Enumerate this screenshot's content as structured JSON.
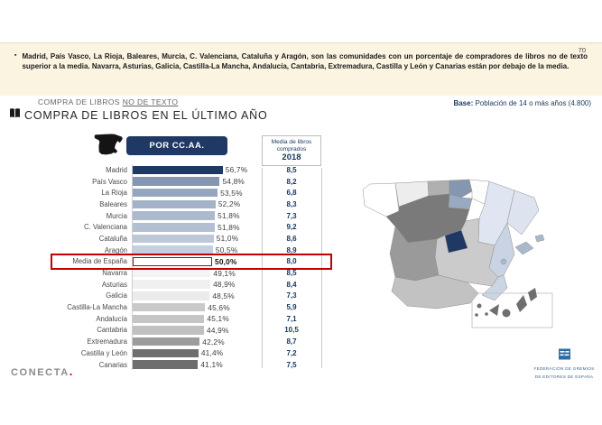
{
  "page_number": "70",
  "bullet_text": "Madrid, País Vasco, La Rioja, Baleares, Murcia, C. Valenciana, Cataluña y Aragón, son las comunidades con un porcentaje de compradores de libros no de texto superior a la media. Navarra, Asturias, Galicia, Castilla-La Mancha, Andalucía, Cantabria, Extremadura, Castilla y León y Canarias están por debajo de la media.",
  "header": {
    "kicker": "COMPRA DE LIBROS ",
    "kicker_underlined": "NO DE TEXTO",
    "title": "COMPRA DE LIBROS EN EL ÚLTIMO AÑO",
    "base_label": "Base:",
    "base_text": " Población de 14 o más años (4.800)"
  },
  "chart": {
    "button_label": "POR CC.AA.",
    "column_header": {
      "line1": "Media de libros",
      "line2": "comprados",
      "year": "2018"
    }
  },
  "chart_data": {
    "type": "bar",
    "orientation": "horizontal",
    "group_title": "POR CC.AA.",
    "value_suffix": "%",
    "xlim": [
      0,
      60
    ],
    "secondary_column": "Media de libros comprados 2018",
    "highlight_row": "Media de España",
    "rows": [
      {
        "label": "Madrid",
        "value": 56.7,
        "pct": "56,7%",
        "media": "8,5",
        "color": "#1F3864"
      },
      {
        "label": "País Vasco",
        "value": 54.8,
        "pct": "54,8%",
        "media": "8,2",
        "color": "#8496B0"
      },
      {
        "label": "La Rioja",
        "value": 53.5,
        "pct": "53,5%",
        "media": "6,8",
        "color": "#97A6BF"
      },
      {
        "label": "Baleares",
        "value": 52.2,
        "pct": "52,2%",
        "media": "8,3",
        "color": "#A3B1C9"
      },
      {
        "label": "Murcia",
        "value": 51.8,
        "pct": "51,8%",
        "media": "7,3",
        "color": "#ACB9CE"
      },
      {
        "label": "C. Valenciana",
        "value": 51.8,
        "pct": "51,8%",
        "media": "9,2",
        "color": "#B3BFD3"
      },
      {
        "label": "Cataluña",
        "value": 51.0,
        "pct": "51,0%",
        "media": "8,6",
        "color": "#BCC7D9"
      },
      {
        "label": "Aragón",
        "value": 50.5,
        "pct": "50,5%",
        "media": "8,9",
        "color": "#C6CFDF"
      },
      {
        "label": "Media de España",
        "value": 50.0,
        "pct": "50,0%",
        "media": "8,0",
        "color": "#FFFFFF",
        "highlight": true
      },
      {
        "label": "Navarra",
        "value": 49.1,
        "pct": "49,1%",
        "media": "8,5",
        "color": "#F4F4F4"
      },
      {
        "label": "Asturias",
        "value": 48.9,
        "pct": "48,9%",
        "media": "8,4",
        "color": "#F0F0F0"
      },
      {
        "label": "Galicia",
        "value": 48.5,
        "pct": "48,5%",
        "media": "7,3",
        "color": "#EBEBEB"
      },
      {
        "label": "Castilla-La Mancha",
        "value": 45.6,
        "pct": "45,6%",
        "media": "5,9",
        "color": "#C9C9C9"
      },
      {
        "label": "Andalucía",
        "value": 45.1,
        "pct": "45,1%",
        "media": "7,1",
        "color": "#C5C5C5"
      },
      {
        "label": "Cantabria",
        "value": 44.9,
        "pct": "44,9%",
        "media": "10,5",
        "color": "#C0C0C0"
      },
      {
        "label": "Extremadura",
        "value": 42.2,
        "pct": "42,2%",
        "media": "8,7",
        "color": "#9C9C9C"
      },
      {
        "label": "Castilla y León",
        "value": 41.4,
        "pct": "41,4%",
        "media": "7,2",
        "color": "#6E6E6E"
      },
      {
        "label": "Canarias",
        "value": 41.1,
        "pct": "41,1%",
        "media": "7,5",
        "color": "#6E6E6E"
      }
    ]
  },
  "map": {
    "regions": {
      "galicia": "#FFFFFF",
      "asturias": "#EDEDED",
      "cantabria": "#B0B0B0",
      "pais-vasco": "#8496B0",
      "navarra": "#FDFDFD",
      "la-rioja": "#9AA9C2",
      "aragon": "#E0E6F1",
      "cataluna": "#DDE3EF",
      "castilla-y-leon": "#7A7A7A",
      "madrid": "#1F3864",
      "castilla-la-mancha": "#CBCBCB",
      "extremadura": "#9A9A9A",
      "andalucia": "#C2C2C2",
      "c-valenciana": "#C9D3E3",
      "murcia": "#CCD5E3",
      "baleares": "#AAB8CE",
      "canarias": "#6E6E6E"
    }
  },
  "footer": {
    "conecta": "CONECTA",
    "conecta_dot": ".",
    "fgee_line1": "FEDERACIÓN DE GREMIOS",
    "fgee_line2": "DE EDITORES DE ESPAÑA"
  },
  "colors": {
    "accent_navy": "#1F3864",
    "highlight_red": "#C00000",
    "band_cream": "#FBF4E1"
  }
}
